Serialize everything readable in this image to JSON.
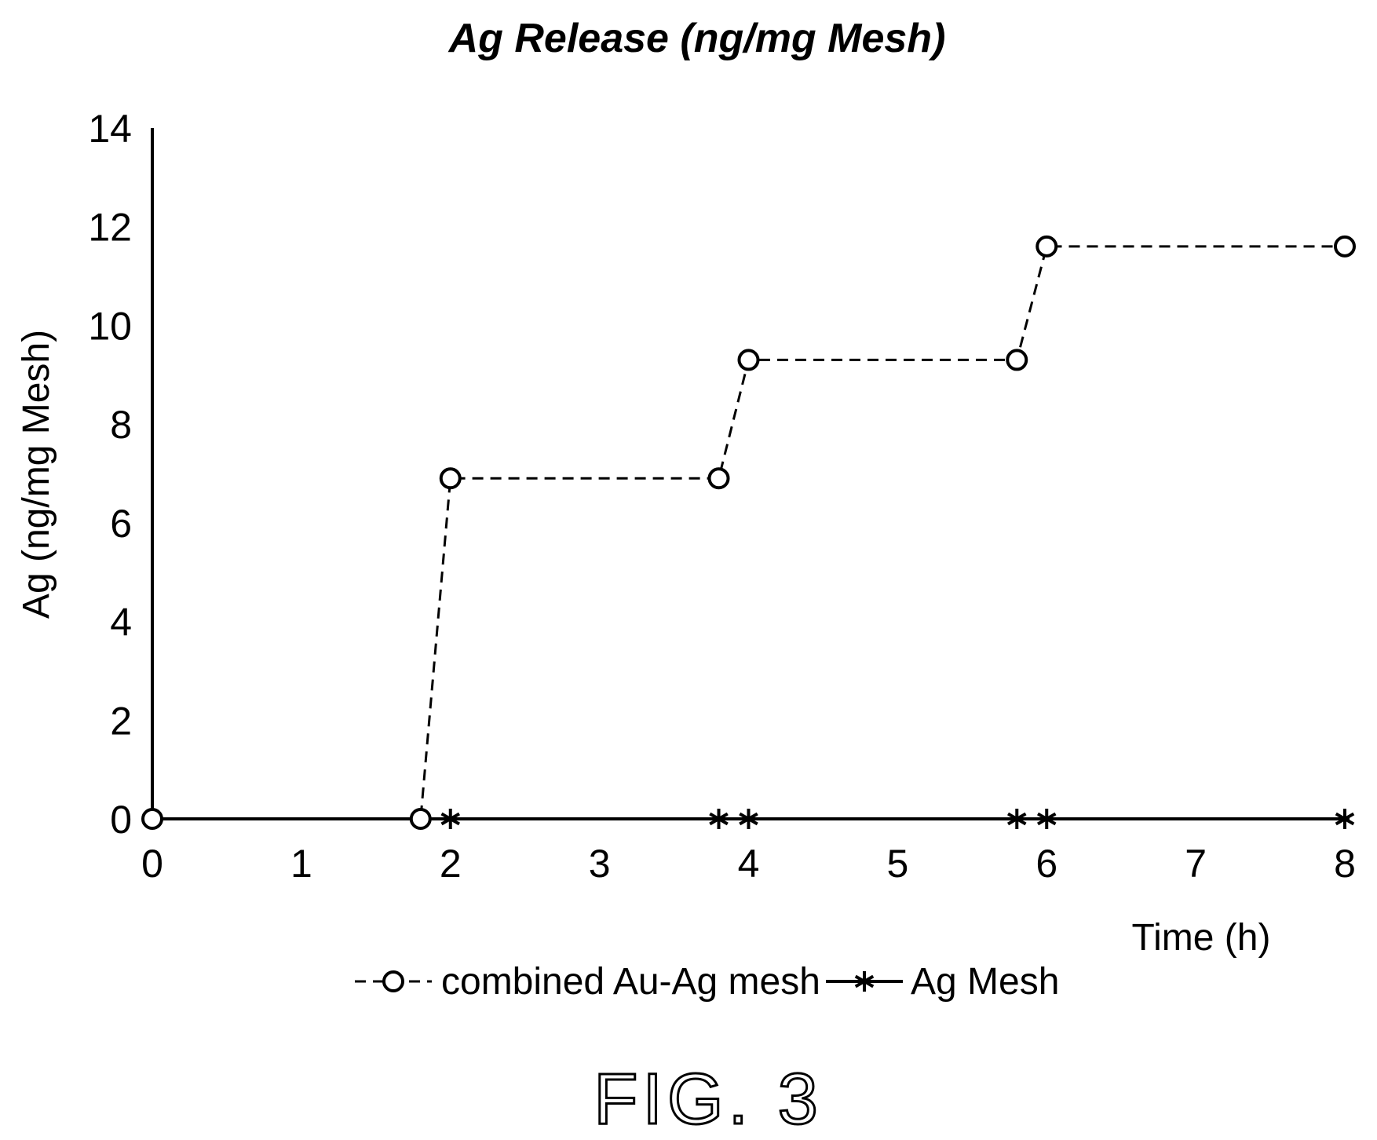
{
  "chart_data": {
    "type": "line",
    "title": "Ag Release (ng/mg Mesh)",
    "xlabel": "Time (h)",
    "ylabel": "Ag (ng/mg Mesh)",
    "xlim": [
      0,
      8
    ],
    "ylim": [
      0,
      14
    ],
    "x_ticks": [
      "0",
      "1",
      "2",
      "3",
      "4",
      "5",
      "6",
      "7",
      "8"
    ],
    "y_ticks": [
      "0",
      "2",
      "4",
      "6",
      "8",
      "10",
      "12",
      "14"
    ],
    "grid": false,
    "legend_position": "bottom",
    "series": [
      {
        "name": "combined Au-Ag mesh",
        "marker": "open-circle",
        "line_style": "dashed",
        "x": [
          0,
          1.8,
          2.0,
          3.8,
          4.0,
          5.8,
          6.0,
          8.0
        ],
        "y": [
          0,
          0,
          6.9,
          6.9,
          9.3,
          9.3,
          11.6,
          11.6
        ]
      },
      {
        "name": "Ag Mesh",
        "marker": "asterisk",
        "line_style": "solid",
        "x": [
          0,
          1.8,
          2.0,
          3.8,
          4.0,
          5.8,
          6.0,
          8.0
        ],
        "y": [
          0,
          0,
          0,
          0,
          0,
          0,
          0,
          0
        ]
      }
    ]
  },
  "figure_label": "FIG. 3"
}
